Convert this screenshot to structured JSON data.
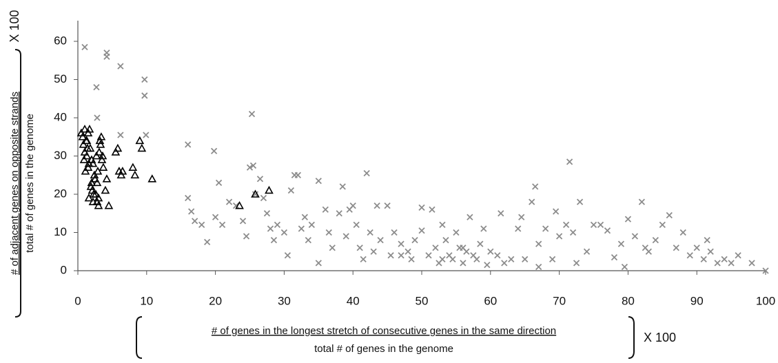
{
  "chart_data": {
    "type": "scatter",
    "x_label": {
      "numerator": "# of genes in the longest stretch of consecutive genes in the same direction",
      "denominator": "total # of genes in the genome",
      "multiplier": "X 100"
    },
    "y_label": {
      "numerator": "# of adjacent genes on opposite strands",
      "denominator": "total # of genes in the genome",
      "multiplier": "X 100"
    },
    "xlim": [
      0,
      100
    ],
    "xticks": [
      0,
      10,
      20,
      30,
      40,
      50,
      60,
      70,
      80,
      90,
      100
    ],
    "ylim": [
      0,
      65
    ],
    "yticks": [
      0,
      10,
      20,
      30,
      40,
      50,
      60
    ],
    "series": [
      {
        "marker": "cross",
        "color": "#8c8c8c",
        "x": [
          1,
          2.7,
          4.2,
          4.2,
          6.2,
          9.7,
          9.7,
          9.9,
          6.2,
          2.8,
          16,
          19.8,
          20.5,
          16,
          16.5,
          17,
          18,
          18.8,
          20,
          21,
          22,
          23,
          24,
          24.5,
          25,
          25.3,
          25.5,
          25.8,
          26.5,
          27,
          27.5,
          28,
          28.5,
          29,
          30,
          30.5,
          31,
          31.5,
          32,
          32.5,
          33,
          33.5,
          34,
          35,
          35,
          36,
          36.5,
          37,
          38,
          38.5,
          39,
          39.5,
          40,
          40.5,
          41,
          41.5,
          42,
          42.5,
          43,
          43.5,
          44,
          45,
          45.5,
          46,
          47,
          48,
          48.5,
          49,
          50,
          50,
          51,
          51.5,
          52,
          52.5,
          53,
          53.5,
          54,
          54.5,
          55,
          55.5,
          56,
          56.5,
          57,
          57.5,
          58,
          58.5,
          59,
          59.5,
          60,
          61,
          61.5,
          62,
          63,
          64,
          64.5,
          65,
          66,
          66.5,
          67,
          68,
          69,
          69.5,
          70,
          71,
          71.5,
          72,
          72.5,
          73,
          74,
          75,
          76,
          77,
          78,
          79,
          79.5,
          80,
          81,
          82,
          82.5,
          83,
          84,
          85,
          86,
          87,
          88,
          89,
          90,
          91,
          91.5,
          92,
          93,
          94,
          95,
          96,
          98,
          100,
          67,
          56,
          53,
          47
        ],
        "y": [
          58.5,
          48,
          57,
          56,
          53.5,
          50,
          45.8,
          35.5,
          35.5,
          40,
          33,
          31.3,
          23,
          19,
          15.5,
          13,
          12,
          7.5,
          14,
          12,
          18,
          17,
          13,
          9,
          27,
          41,
          27.5,
          20,
          24,
          19,
          15,
          11,
          8,
          12,
          10,
          4,
          21,
          25,
          25,
          11,
          14,
          8,
          12,
          2,
          23.5,
          16,
          10,
          6,
          15,
          22,
          9,
          16,
          17,
          12,
          6,
          3,
          25.5,
          10,
          5,
          17,
          8,
          17,
          4,
          10,
          7,
          5,
          3,
          8,
          10.5,
          16.5,
          4,
          16,
          6,
          2,
          12,
          8,
          4,
          3,
          10,
          6,
          2,
          5,
          14,
          4,
          3,
          7,
          11,
          1.5,
          5,
          4,
          15,
          2,
          3,
          11,
          14,
          3,
          18,
          22,
          7,
          11,
          3,
          15.5,
          9,
          12,
          28.5,
          10,
          2,
          18,
          5,
          12,
          12,
          10.5,
          3.5,
          7,
          1,
          13.5,
          9,
          18,
          6,
          5,
          8,
          12,
          14.5,
          6,
          10,
          4,
          6,
          3,
          8,
          5,
          2,
          3,
          2,
          4,
          2,
          0,
          1,
          6,
          3,
          4
        ]
      },
      {
        "marker": "triangle",
        "color": "#000000",
        "x": [
          0.5,
          0.7,
          0.8,
          1,
          1,
          1.2,
          1.3,
          1.5,
          1.5,
          1.7,
          1.8,
          2,
          2,
          2.2,
          2.3,
          2.5,
          2.7,
          2.8,
          3,
          3,
          3.2,
          3.3,
          3.5,
          3.7,
          4,
          4.2,
          4.5,
          0.9,
          1.1,
          1.4,
          1.6,
          1.9,
          2.1,
          2.4,
          2.6,
          2.9,
          3.1,
          3.4,
          5.5,
          5.8,
          6,
          6.3,
          6.5,
          8,
          8.3,
          9,
          9.3,
          10.8,
          23.5,
          25.8,
          27.8,
          1.3,
          1.6,
          2.2,
          2.8,
          3.6
        ],
        "y": [
          36,
          35,
          33,
          37,
          31,
          34,
          30,
          36,
          27,
          37,
          32,
          29,
          23,
          28,
          20,
          24,
          30,
          18,
          17,
          19,
          34,
          33,
          29,
          27,
          21,
          24,
          17,
          29,
          26,
          32,
          19,
          22,
          21,
          25,
          20,
          26,
          31,
          35,
          31,
          32,
          26,
          25,
          26,
          27,
          25,
          34,
          32,
          24,
          17,
          20,
          21,
          34,
          28,
          18,
          23,
          30
        ]
      }
    ]
  }
}
